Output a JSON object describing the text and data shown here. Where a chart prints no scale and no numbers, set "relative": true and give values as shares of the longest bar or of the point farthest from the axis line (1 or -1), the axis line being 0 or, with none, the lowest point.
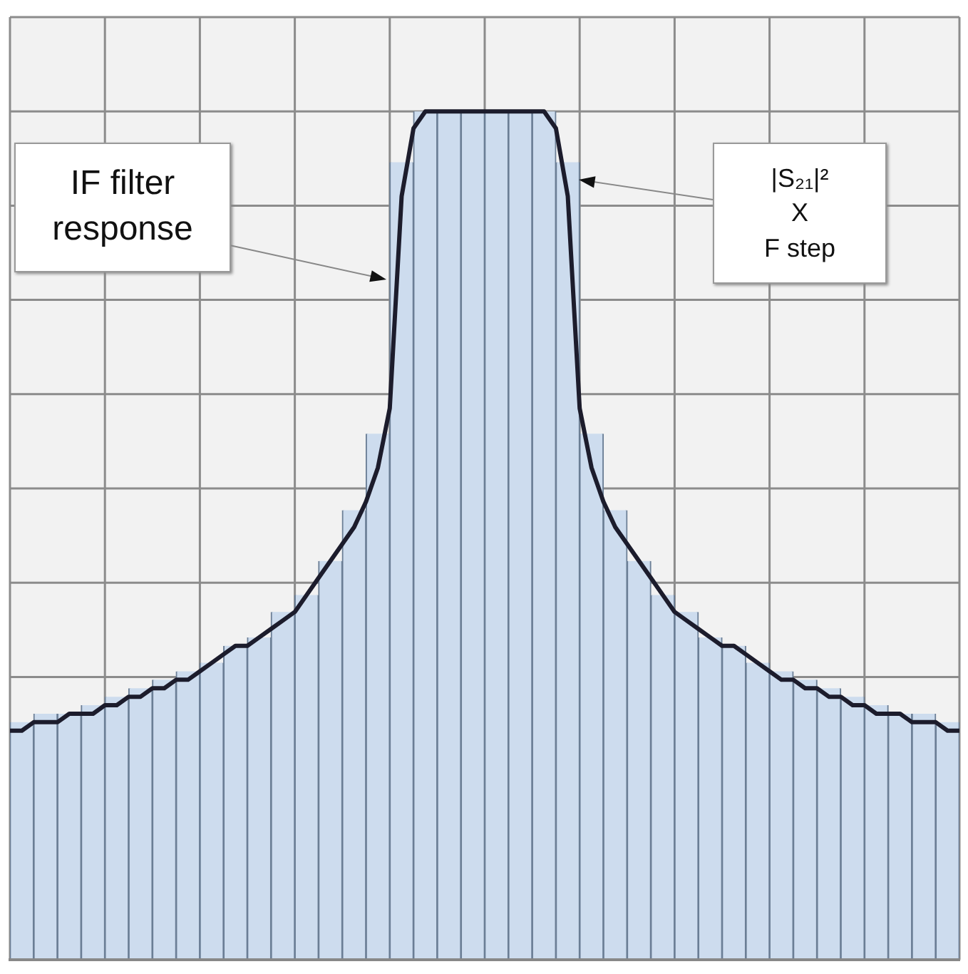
{
  "chart_data": [
    {
      "type": "bar",
      "relative": true,
      "grid": true,
      "color": "#cddcee",
      "categories": [
        null,
        null,
        null,
        null,
        null,
        null,
        null,
        null,
        null,
        null,
        null,
        null,
        null,
        null,
        null,
        null,
        null,
        null,
        null,
        null,
        null,
        null,
        null,
        null,
        null,
        null,
        null,
        null,
        null,
        null,
        null,
        null,
        null,
        null,
        null,
        null,
        null,
        null,
        null,
        null
      ],
      "values": [
        0.28,
        0.29,
        0.29,
        0.3,
        0.31,
        0.32,
        0.33,
        0.34,
        0.35,
        0.37,
        0.38,
        0.41,
        0.43,
        0.47,
        0.53,
        0.62,
        0.94,
        1,
        1,
        1,
        1,
        1,
        1,
        0.94,
        0.62,
        0.53,
        0.47,
        0.43,
        0.41,
        0.38,
        0.37,
        0.35,
        0.34,
        0.33,
        0.32,
        0.31,
        0.3,
        0.29,
        0.29,
        0.28
      ],
      "annotations": [
        "|S₂₁|²\nX\nF step"
      ]
    },
    {
      "type": "line",
      "relative": true,
      "color": "#1c1c2c",
      "categories": [
        null,
        null,
        null,
        null,
        null,
        null,
        null,
        null,
        null,
        null,
        null,
        null,
        null,
        null,
        null,
        null,
        null,
        null,
        null,
        null,
        null,
        null,
        null,
        null,
        null,
        null,
        null,
        null,
        null,
        null,
        null,
        null,
        null,
        null,
        null,
        null,
        null,
        null,
        null,
        null,
        null,
        null,
        null,
        null,
        null,
        null,
        null,
        null,
        null,
        null,
        null,
        null,
        null,
        null,
        null,
        null,
        null,
        null,
        null,
        null,
        null,
        null,
        null,
        null,
        null,
        null,
        null,
        null,
        null,
        null,
        null,
        null,
        null,
        null,
        null,
        null,
        null,
        null,
        null,
        null,
        null
      ],
      "values": [
        0.27,
        0.27,
        0.28,
        0.28,
        0.28,
        0.29,
        0.29,
        0.29,
        0.3,
        0.3,
        0.31,
        0.31,
        0.32,
        0.32,
        0.33,
        0.33,
        0.34,
        0.35,
        0.36,
        0.37,
        0.37,
        0.38,
        0.39,
        0.4,
        0.41,
        0.43,
        0.45,
        0.47,
        0.49,
        0.51,
        0.54,
        0.58,
        0.65,
        0.9,
        0.98,
        1,
        1,
        1,
        1,
        1,
        1,
        1,
        1,
        1,
        1,
        1,
        0.98,
        0.9,
        0.65,
        0.58,
        0.54,
        0.51,
        0.49,
        0.47,
        0.45,
        0.43,
        0.41,
        0.4,
        0.39,
        0.38,
        0.37,
        0.37,
        0.36,
        0.35,
        0.34,
        0.33,
        0.33,
        0.32,
        0.32,
        0.31,
        0.31,
        0.3,
        0.3,
        0.29,
        0.29,
        0.29,
        0.28,
        0.28,
        0.28,
        0.27,
        0.27
      ],
      "annotations": [
        "IF filter\nresponse"
      ]
    }
  ]
}
